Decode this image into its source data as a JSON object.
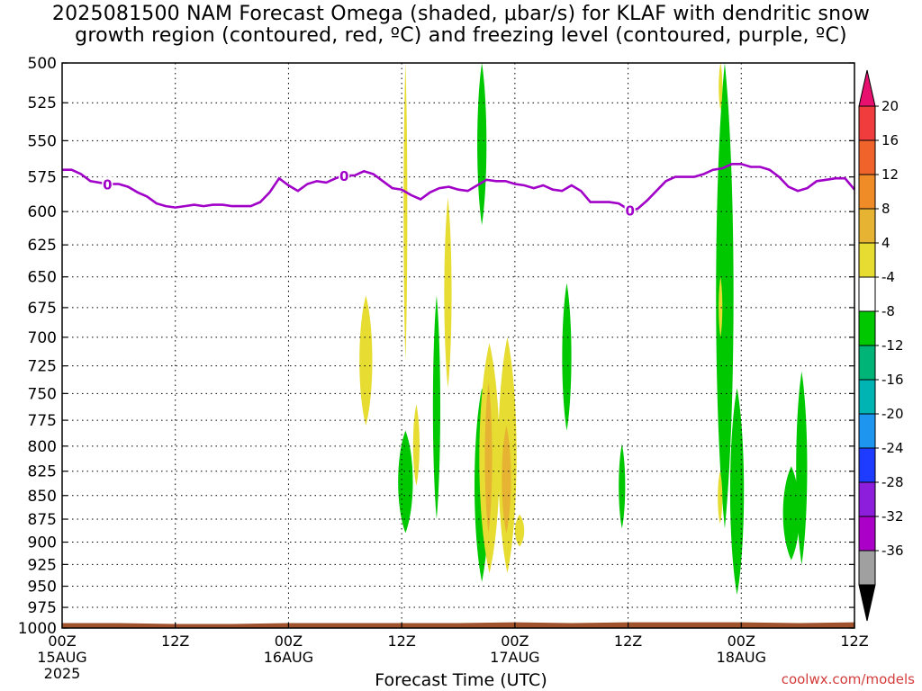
{
  "title_line1": "2025081500 NAM Forecast Omega (shaded, μbar/s) for KLAF with dendritic snow",
  "title_line2": "growth region (contoured, red, ºC) and freezing level (contoured, purple, ºC)",
  "credit": "coolwx.com/models",
  "chart_data": {
    "type": "heatmap",
    "xlabel": "Forecast Time (UTC)",
    "x_ticks": [
      {
        "hours": 0,
        "label": "00Z",
        "sub": "15AUG",
        "sub2": "2025"
      },
      {
        "hours": 12,
        "label": "12Z"
      },
      {
        "hours": 24,
        "label": "00Z",
        "sub": "16AUG"
      },
      {
        "hours": 36,
        "label": "12Z"
      },
      {
        "hours": 48,
        "label": "00Z",
        "sub": "17AUG"
      },
      {
        "hours": 60,
        "label": "12Z"
      },
      {
        "hours": 72,
        "label": "00Z",
        "sub": "18AUG"
      },
      {
        "hours": 84,
        "label": "12Z"
      }
    ],
    "xlim_hours": [
      0,
      84
    ],
    "y_ticks": [
      500,
      525,
      550,
      575,
      600,
      625,
      650,
      675,
      700,
      725,
      750,
      775,
      800,
      825,
      850,
      875,
      900,
      925,
      950,
      975,
      1000
    ],
    "ylim_hPa": [
      500,
      1000
    ],
    "grid": true,
    "colorbar": {
      "labels": [
        "20",
        "16",
        "12",
        "8",
        "4",
        "-4",
        "-8",
        "-12",
        "-16",
        "-20",
        "-24",
        "-28",
        "-32",
        "-36"
      ],
      "colors": [
        "#e8106e",
        "#f03c3c",
        "#f0642c",
        "#f08c28",
        "#e6b432",
        "#e6dc32",
        "#ffffff",
        "#00c800",
        "#00b478",
        "#00b4b4",
        "#1e96f0",
        "#1e3cff",
        "#8c1edc",
        "#aa00c8",
        "#a0a0a0",
        "#000000"
      ]
    },
    "freezing_level": {
      "color": "#a000c8",
      "label": "0",
      "label_at_hours": [
        4.8,
        29.9,
        60.2
      ],
      "points": [
        [
          0,
          570
        ],
        [
          1,
          570
        ],
        [
          2,
          573
        ],
        [
          3,
          578
        ],
        [
          4.8,
          580
        ],
        [
          6,
          580
        ],
        [
          7,
          582
        ],
        [
          8,
          586
        ],
        [
          9,
          589
        ],
        [
          10,
          594
        ],
        [
          11,
          596
        ],
        [
          12,
          597
        ],
        [
          13,
          596
        ],
        [
          14,
          595
        ],
        [
          15,
          596
        ],
        [
          16,
          595
        ],
        [
          17,
          595
        ],
        [
          18,
          596
        ],
        [
          19,
          596
        ],
        [
          20,
          596
        ],
        [
          21,
          593
        ],
        [
          22,
          586
        ],
        [
          23,
          576
        ],
        [
          24,
          581
        ],
        [
          25,
          585
        ],
        [
          26,
          580
        ],
        [
          27,
          578
        ],
        [
          28,
          579
        ],
        [
          29,
          576
        ],
        [
          29.9,
          574
        ],
        [
          31,
          574
        ],
        [
          32,
          571
        ],
        [
          33,
          573
        ],
        [
          34,
          578
        ],
        [
          35,
          583
        ],
        [
          36,
          584
        ],
        [
          37,
          588
        ],
        [
          38,
          591
        ],
        [
          39,
          586
        ],
        [
          40,
          583
        ],
        [
          41,
          582
        ],
        [
          42,
          584
        ],
        [
          43,
          585
        ],
        [
          44,
          581
        ],
        [
          45,
          577
        ],
        [
          46,
          578
        ],
        [
          47,
          578
        ],
        [
          48,
          580
        ],
        [
          49,
          581
        ],
        [
          50,
          583
        ],
        [
          51,
          581
        ],
        [
          52,
          584
        ],
        [
          53,
          585
        ],
        [
          54,
          581
        ],
        [
          55,
          585
        ],
        [
          56,
          593
        ],
        [
          57,
          593
        ],
        [
          58,
          593
        ],
        [
          59,
          594
        ],
        [
          60.2,
          599
        ],
        [
          61,
          598
        ],
        [
          62,
          592
        ],
        [
          63,
          585
        ],
        [
          64,
          578
        ],
        [
          65,
          575
        ],
        [
          66,
          575
        ],
        [
          67,
          575
        ],
        [
          68,
          573
        ],
        [
          69,
          570
        ],
        [
          70,
          569
        ],
        [
          71,
          566
        ],
        [
          72,
          566
        ],
        [
          73,
          568
        ],
        [
          74,
          568
        ],
        [
          75,
          570
        ],
        [
          76,
          575
        ],
        [
          77,
          582
        ],
        [
          78,
          585
        ],
        [
          79,
          583
        ],
        [
          80,
          578
        ],
        [
          81,
          577
        ],
        [
          82,
          576
        ],
        [
          83,
          576
        ],
        [
          84,
          584
        ]
      ]
    },
    "surface": {
      "color": "#a0522d",
      "pressure_hPa": [
        994,
        994,
        995,
        995,
        994,
        994,
        994,
        994,
        993,
        994,
        993,
        993,
        993,
        994,
        993
      ]
    },
    "omega_regions": [
      {
        "value": -6,
        "color": "#00c800",
        "t0": 35.6,
        "t1": 37.2,
        "p0": 785,
        "p1": 890
      },
      {
        "value": -6,
        "color": "#00c800",
        "t0": 39.3,
        "t1": 40.1,
        "p0": 665,
        "p1": 875
      },
      {
        "value": -6,
        "color": "#00c800",
        "t0": 43.7,
        "t1": 45.3,
        "p0": 745,
        "p1": 945
      },
      {
        "value": -6,
        "color": "#00c800",
        "t0": 44.0,
        "t1": 45.0,
        "p0": 500,
        "p1": 610
      },
      {
        "value": -6,
        "color": "#00c800",
        "t0": 53.0,
        "t1": 54.0,
        "p0": 655,
        "p1": 785
      },
      {
        "value": -6,
        "color": "#00c800",
        "t0": 59.0,
        "t1": 59.7,
        "p0": 798,
        "p1": 885
      },
      {
        "value": -6,
        "color": "#00c800",
        "t0": 69.3,
        "t1": 71.2,
        "p0": 500,
        "p1": 885
      },
      {
        "value": -6,
        "color": "#00c800",
        "t0": 70.8,
        "t1": 72.3,
        "p0": 745,
        "p1": 960
      },
      {
        "value": -6,
        "color": "#00c800",
        "t0": 76.4,
        "t1": 78.2,
        "p0": 820,
        "p1": 920
      },
      {
        "value": -6,
        "color": "#00c800",
        "t0": 77.8,
        "t1": 79.0,
        "p0": 730,
        "p1": 925
      },
      {
        "value": 6,
        "color": "#e6dc32",
        "t0": 31.5,
        "t1": 32.9,
        "p0": 665,
        "p1": 780
      },
      {
        "value": 6,
        "color": "#e6dc32",
        "t0": 36.2,
        "t1": 36.6,
        "p0": 500,
        "p1": 720
      },
      {
        "value": 6,
        "color": "#e6dc32",
        "t0": 37.2,
        "t1": 37.9,
        "p0": 760,
        "p1": 840
      },
      {
        "value": 6,
        "color": "#e6dc32",
        "t0": 40.5,
        "t1": 41.3,
        "p0": 590,
        "p1": 745
      },
      {
        "value": 6,
        "color": "#e6dc32",
        "t0": 44.2,
        "t1": 46.4,
        "p0": 705,
        "p1": 935
      },
      {
        "value": 6,
        "color": "#e6dc32",
        "t0": 46.2,
        "t1": 48.2,
        "p0": 700,
        "p1": 935
      },
      {
        "value": 6,
        "color": "#e6dc32",
        "t0": 48.0,
        "t1": 49.0,
        "p0": 870,
        "p1": 905
      },
      {
        "value": 6,
        "color": "#e6dc32",
        "t0": 69.5,
        "t1": 70.0,
        "p0": 825,
        "p1": 880
      },
      {
        "value": 6,
        "color": "#e6dc32",
        "t0": 69.6,
        "t1": 70.0,
        "p0": 500,
        "p1": 530
      },
      {
        "value": 6,
        "color": "#e6dc32",
        "t0": 69.6,
        "t1": 70.0,
        "p0": 650,
        "p1": 700
      },
      {
        "value": 10,
        "color": "#e6b432",
        "t0": 44.8,
        "t1": 45.6,
        "p0": 740,
        "p1": 890
      },
      {
        "value": 10,
        "color": "#e6b432",
        "t0": 46.6,
        "t1": 47.6,
        "p0": 780,
        "p1": 890
      }
    ]
  }
}
